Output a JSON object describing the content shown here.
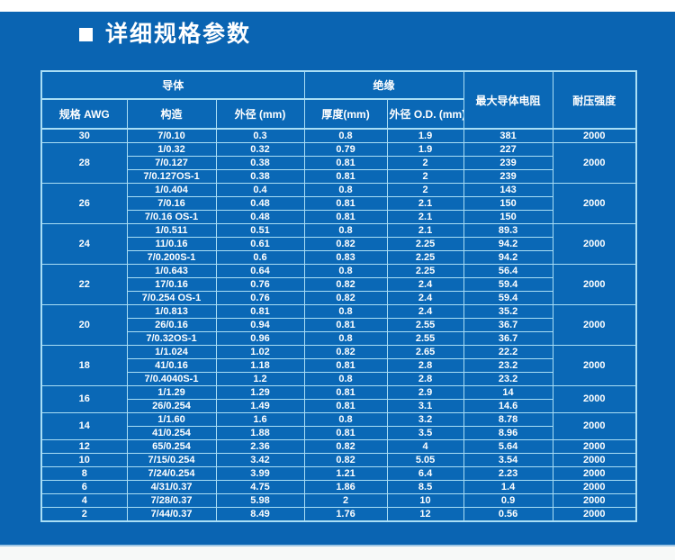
{
  "page": {
    "background_color": "#0a64b2",
    "top_strip_color": "#ffffff",
    "bottom_strip_color": "#f7f9f8",
    "table_border_color": "#a9def5",
    "text_color": "#ffffff"
  },
  "title": {
    "bullet": "",
    "text": "详细规格参数"
  },
  "table": {
    "header": {
      "group_conductor": "导体",
      "group_insulation": "绝缘",
      "col_resistance": "最大导体电阻",
      "col_voltage": "耐压强度",
      "col_awg": "规格 AWG",
      "col_construction": "构造",
      "col_od": "外径  (mm)",
      "col_thickness": "厚度(mm)",
      "col_ins_od": "外径 O.D. (mm)"
    },
    "groups": [
      {
        "awg": "30",
        "voltage": "2000",
        "rows": [
          [
            "7/0.10",
            "0.3",
            "0.8",
            "1.9",
            "381"
          ]
        ]
      },
      {
        "awg": "28",
        "voltage": "2000",
        "rows": [
          [
            "1/0.32",
            "0.32",
            "0.79",
            "1.9",
            "227"
          ],
          [
            "7/0.127",
            "0.38",
            "0.81",
            "2",
            "239"
          ],
          [
            "7/0.127OS-1",
            "0.38",
            "0.81",
            "2",
            "239"
          ]
        ]
      },
      {
        "awg": "26",
        "voltage": "2000",
        "rows": [
          [
            "1/0.404",
            "0.4",
            "0.8",
            "2",
            "143"
          ],
          [
            "7/0.16",
            "0.48",
            "0.81",
            "2.1",
            "150"
          ],
          [
            "7/0.16 OS-1",
            "0.48",
            "0.81",
            "2.1",
            "150"
          ]
        ]
      },
      {
        "awg": "24",
        "voltage": "2000",
        "rows": [
          [
            "1/0.511",
            "0.51",
            "0.8",
            "2.1",
            "89.3"
          ],
          [
            "11/0.16",
            "0.61",
            "0.82",
            "2.25",
            "94.2"
          ],
          [
            "7/0.200S-1",
            "0.6",
            "0.83",
            "2.25",
            "94.2"
          ]
        ]
      },
      {
        "awg": "22",
        "voltage": "2000",
        "rows": [
          [
            "1/0.643",
            "0.64",
            "0.8",
            "2.25",
            "56.4"
          ],
          [
            "17/0.16",
            "0.76",
            "0.82",
            "2.4",
            "59.4"
          ],
          [
            "7/0.254 OS-1",
            "0.76",
            "0.82",
            "2.4",
            "59.4"
          ]
        ]
      },
      {
        "awg": "20",
        "voltage": "2000",
        "rows": [
          [
            "1/0.813",
            "0.81",
            "0.8",
            "2.4",
            "35.2"
          ],
          [
            "26/0.16",
            "0.94",
            "0.81",
            "2.55",
            "36.7"
          ],
          [
            "7/0.32OS-1",
            "0.96",
            "0.8",
            "2.55",
            "36.7"
          ]
        ]
      },
      {
        "awg": "18",
        "voltage": "2000",
        "rows": [
          [
            "1/1.024",
            "1.02",
            "0.82",
            "2.65",
            "22.2"
          ],
          [
            "41/0.16",
            "1.18",
            "0.81",
            "2.8",
            "23.2"
          ],
          [
            "7/0.4040S-1",
            "1.2",
            "0.8",
            "2.8",
            "23.2"
          ]
        ]
      },
      {
        "awg": "16",
        "voltage": "2000",
        "rows": [
          [
            "1/1.29",
            "1.29",
            "0.81",
            "2.9",
            "14"
          ],
          [
            "26/0.254",
            "1.49",
            "0.81",
            "3.1",
            "14.6"
          ]
        ]
      },
      {
        "awg": "14",
        "voltage": "2000",
        "rows": [
          [
            "1/1.60",
            "1.6",
            "0.8",
            "3.2",
            "8.78"
          ],
          [
            "41/0.254",
            "1.88",
            "0.81",
            "3.5",
            "8.96"
          ]
        ]
      },
      {
        "awg": "12",
        "voltage": "2000",
        "rows": [
          [
            "65/0.254",
            "2.36",
            "0.82",
            "4",
            "5.64"
          ]
        ]
      },
      {
        "awg": "10",
        "voltage": "2000",
        "rows": [
          [
            "7/15/0.254",
            "3.42",
            "0.82",
            "5.05",
            "3.54"
          ]
        ]
      },
      {
        "awg": "8",
        "voltage": "2000",
        "rows": [
          [
            "7/24/0.254",
            "3.99",
            "1.21",
            "6.4",
            "2.23"
          ]
        ]
      },
      {
        "awg": "6",
        "voltage": "2000",
        "rows": [
          [
            "4/31/0.37",
            "4.75",
            "1.86",
            "8.5",
            "1.4"
          ]
        ]
      },
      {
        "awg": "4",
        "voltage": "2000",
        "rows": [
          [
            "7/28/0.37",
            "5.98",
            "2",
            "10",
            "0.9"
          ]
        ]
      },
      {
        "awg": "2",
        "voltage": "2000",
        "rows": [
          [
            "7/44/0.37",
            "8.49",
            "1.76",
            "12",
            "0.56"
          ]
        ]
      }
    ]
  }
}
